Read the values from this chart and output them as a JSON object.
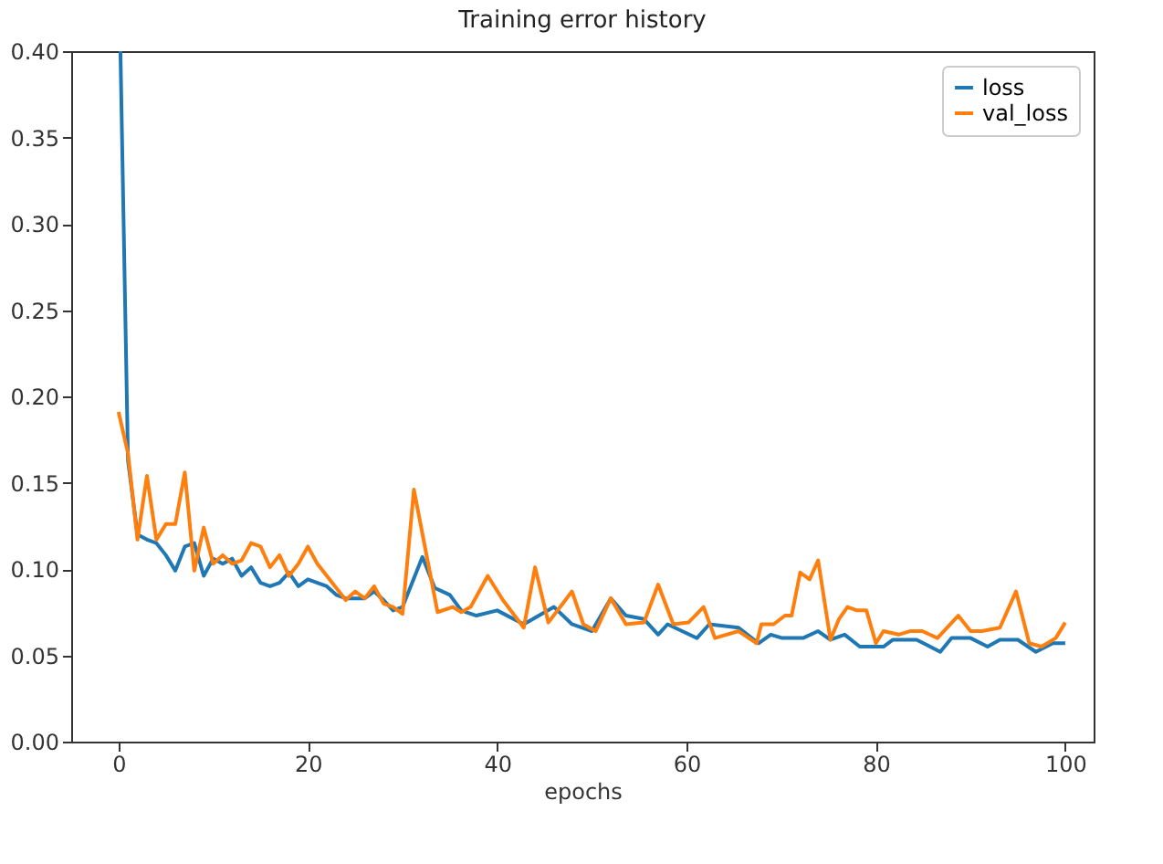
{
  "chart_data": {
    "type": "line",
    "title": "Training error history",
    "xlabel": "epochs",
    "xlim": [
      -5,
      103
    ],
    "ylim": [
      0,
      0.4
    ],
    "xticks": [
      0,
      20,
      40,
      60,
      80,
      100
    ],
    "yticks": [
      {
        "value": 0,
        "label": "0.00"
      },
      {
        "value": 0.05,
        "label": "0.05"
      },
      {
        "value": 0.1,
        "label": "0.10"
      },
      {
        "value": 0.15,
        "label": "0.15"
      },
      {
        "value": 0.2,
        "label": "0.20"
      },
      {
        "value": 0.25,
        "label": "0.25"
      },
      {
        "value": 0.3,
        "label": "0.30"
      },
      {
        "value": 0.35,
        "label": "0.35"
      },
      {
        "value": 0.4,
        "label": "0.40"
      }
    ],
    "grid": false,
    "legend": "top right",
    "line_style": "solid",
    "marker": "none",
    "series": [
      {
        "name": "loss",
        "color": "#1f77b4",
        "x": [
          0.2,
          1,
          2,
          3,
          4,
          5,
          6,
          7,
          8,
          9,
          10,
          11,
          12,
          13,
          14,
          15,
          16,
          17,
          18,
          19,
          20,
          21,
          22,
          23,
          24,
          25,
          26,
          27,
          28,
          29,
          30,
          32.1,
          33.4,
          35,
          36.2,
          37.8,
          40,
          42.8,
          46,
          47.9,
          50,
          52,
          53.6,
          55.5,
          57,
          58,
          61.1,
          62.4,
          65.5,
          67.6,
          68.9,
          70.1,
          72.3,
          73.9,
          75.2,
          76.7,
          78.3,
          80.8,
          81.8,
          84.3,
          86.8,
          88,
          90,
          91.8,
          93.1,
          95,
          96.9,
          98.7,
          100
        ],
        "values": [
          0.4,
          0.163,
          0.12,
          0.117,
          0.115,
          0.108,
          0.099,
          0.113,
          0.115,
          0.096,
          0.106,
          0.103,
          0.106,
          0.096,
          0.101,
          0.092,
          0.09,
          0.092,
          0.098,
          0.09,
          0.094,
          0.092,
          0.09,
          0.085,
          0.083,
          0.083,
          0.083,
          0.087,
          0.082,
          0.076,
          0.078,
          0.107,
          0.089,
          0.085,
          0.076,
          0.073,
          0.076,
          0.068,
          0.078,
          0.068,
          0.064,
          0.083,
          0.073,
          0.071,
          0.062,
          0.068,
          0.06,
          0.068,
          0.066,
          0.057,
          0.062,
          0.06,
          0.06,
          0.064,
          0.059,
          0.062,
          0.055,
          0.055,
          0.059,
          0.059,
          0.052,
          0.06,
          0.06,
          0.055,
          0.059,
          0.059,
          0.052,
          0.057,
          0.057
        ]
      },
      {
        "name": "val_loss",
        "color": "#ff7f0e",
        "x": [
          0,
          1,
          2,
          3,
          4,
          5,
          6,
          7,
          8,
          9,
          10,
          11,
          12,
          13,
          14,
          15,
          16,
          17,
          18,
          19,
          20,
          21,
          22,
          23,
          24,
          25,
          26,
          27,
          28,
          29,
          30,
          31.2,
          33.7,
          35.3,
          36.2,
          37.2,
          39,
          40.6,
          42.8,
          44,
          45.4,
          47.9,
          49.1,
          50.4,
          52,
          53.6,
          55.5,
          57,
          58.6,
          60.2,
          61.8,
          63,
          65.5,
          67.4,
          67.9,
          69.2,
          70.4,
          71.1,
          72,
          73,
          73.9,
          75.2,
          76.1,
          77,
          78,
          79,
          80,
          80.8,
          82.4,
          83.6,
          84.9,
          86.5,
          88.7,
          90,
          91.2,
          93.1,
          94.8,
          96.2,
          97.5,
          99,
          100
        ],
        "values": [
          0.191,
          0.167,
          0.117,
          0.154,
          0.117,
          0.126,
          0.126,
          0.156,
          0.099,
          0.124,
          0.103,
          0.108,
          0.103,
          0.105,
          0.115,
          0.113,
          0.101,
          0.108,
          0.096,
          0.103,
          0.113,
          0.103,
          0.096,
          0.089,
          0.082,
          0.087,
          0.083,
          0.09,
          0.08,
          0.078,
          0.074,
          0.146,
          0.075,
          0.078,
          0.075,
          0.078,
          0.096,
          0.082,
          0.066,
          0.101,
          0.069,
          0.087,
          0.068,
          0.064,
          0.083,
          0.068,
          0.069,
          0.091,
          0.068,
          0.069,
          0.078,
          0.06,
          0.064,
          0.057,
          0.068,
          0.068,
          0.073,
          0.073,
          0.098,
          0.094,
          0.105,
          0.059,
          0.071,
          0.078,
          0.076,
          0.076,
          0.057,
          0.064,
          0.062,
          0.064,
          0.064,
          0.06,
          0.073,
          0.064,
          0.064,
          0.066,
          0.087,
          0.057,
          0.055,
          0.06,
          0.069
        ]
      }
    ]
  }
}
